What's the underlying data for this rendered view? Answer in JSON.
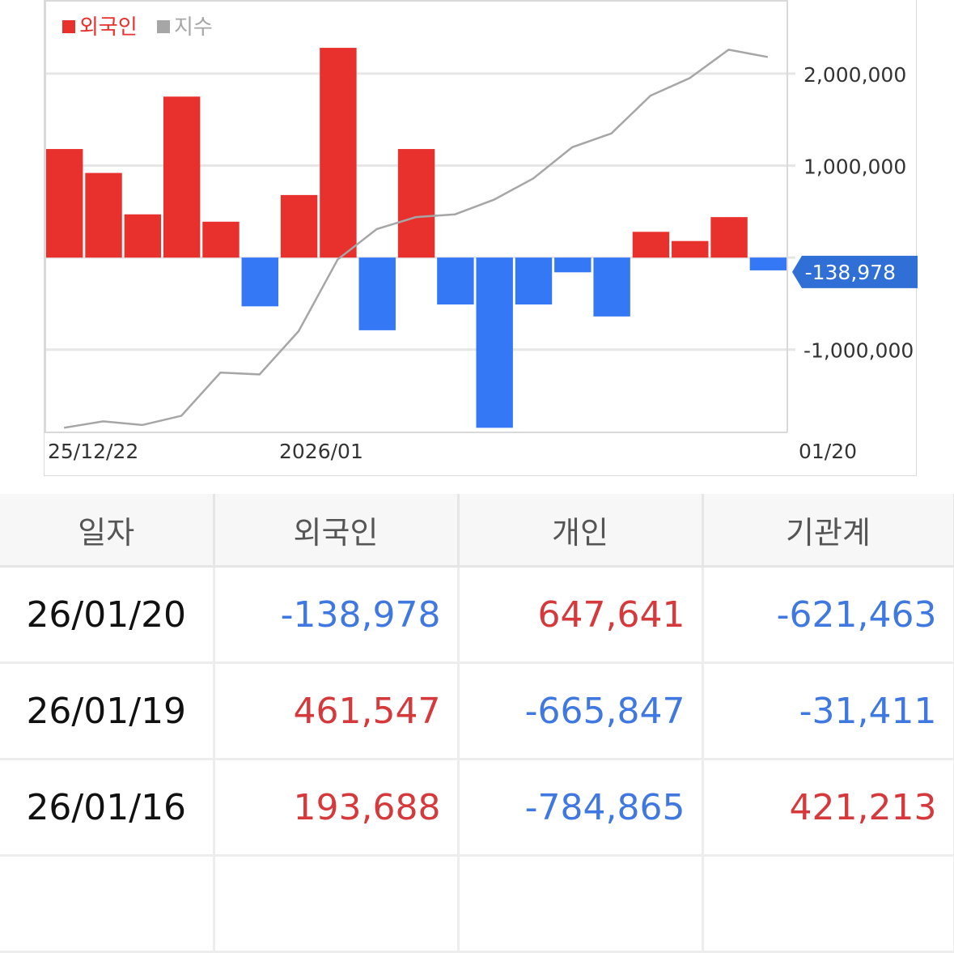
{
  "chart_data": {
    "type": "bar",
    "legend": [
      {
        "label": "외국인",
        "color": "#e8302d"
      },
      {
        "label": "지수",
        "color": "#a6a6a6"
      }
    ],
    "x_tick_labels": [
      "25/12/22",
      "2026/01",
      "01/20"
    ],
    "y_tick_labels": [
      "2,000,000",
      "1,000,000",
      "-1,000,000"
    ],
    "y_ticks": [
      2000000,
      1000000,
      -1000000
    ],
    "ylim": [
      -1900000,
      2800000
    ],
    "series": [
      {
        "name": "외국인",
        "values": [
          1180000,
          920000,
          470000,
          1750000,
          390000,
          -530000,
          680000,
          2280000,
          -790000,
          1180000,
          -510000,
          -1850000,
          -510000,
          -160000,
          -640000,
          280000,
          180000,
          440000,
          -138978
        ]
      },
      {
        "name": "지수",
        "values": [
          -1850000,
          -1780000,
          -1820000,
          -1720000,
          -1250000,
          -1270000,
          -800000,
          -20000,
          310000,
          440000,
          470000,
          630000,
          860000,
          1200000,
          1350000,
          1760000,
          1950000,
          2260000,
          2180000
        ]
      }
    ],
    "bar_colors": {
      "positive": "#e8302d",
      "negative": "#3478f6"
    },
    "line_color": "#a6a6a6",
    "last_value_label": "-138,978",
    "last_value_badge_color": "#2f6fd6",
    "grid": true
  },
  "table": {
    "headers": [
      "일자",
      "외국인",
      "개인",
      "기관계"
    ],
    "rows": [
      {
        "date": "26/01/20",
        "foreign": "-138,978",
        "individual": "647,641",
        "institution": "-621,463"
      },
      {
        "date": "26/01/19",
        "foreign": "461,547",
        "individual": "-665,847",
        "institution": "-31,411"
      },
      {
        "date": "26/01/16",
        "foreign": "193,688",
        "individual": "-784,865",
        "institution": "421,213"
      }
    ],
    "colors": {
      "positive": "#d6393b",
      "negative": "#3f78e0"
    }
  }
}
